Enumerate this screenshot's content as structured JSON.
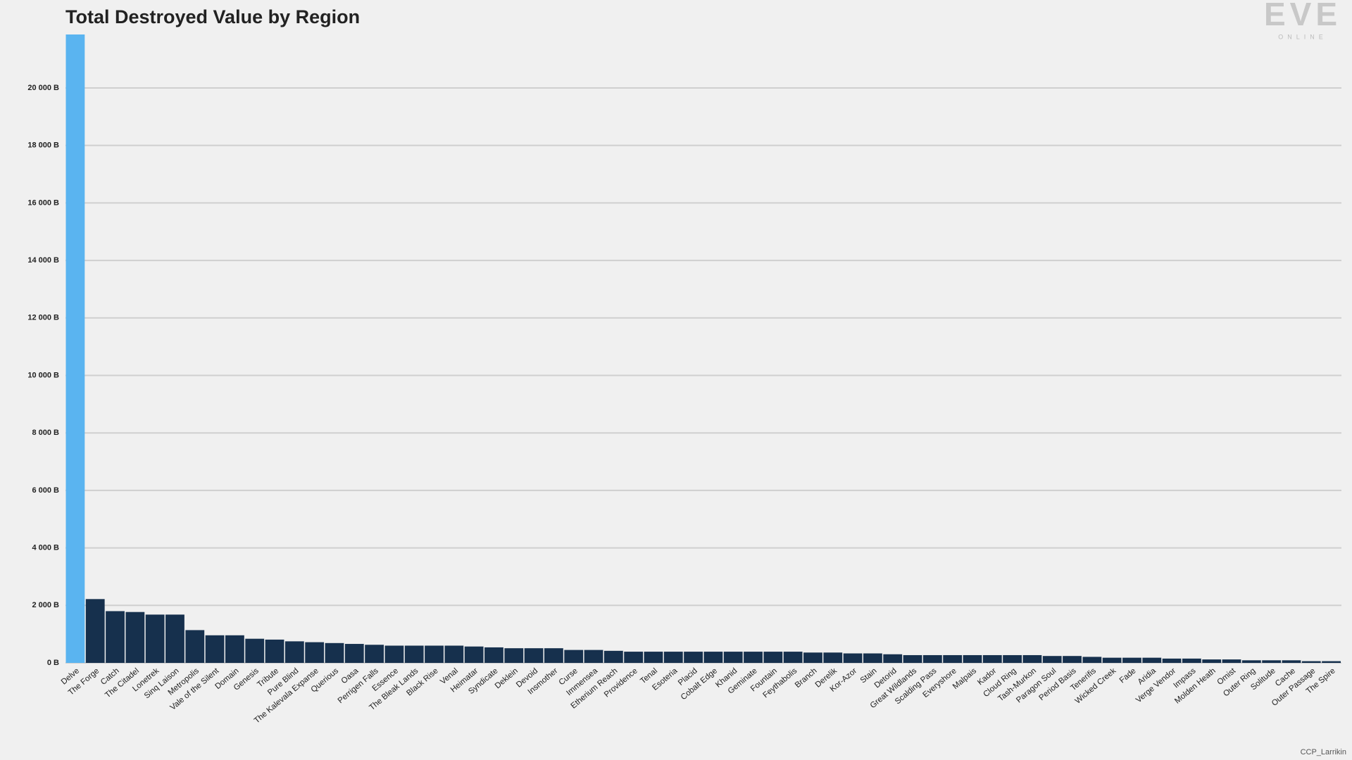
{
  "chart_data": {
    "type": "bar",
    "title": "Total Destroyed Value by Region",
    "watermark": "EVE",
    "watermark_sub": "ONLINE",
    "credit": "CCP_Larrikin",
    "categories": [
      "Delve",
      "The Forge",
      "Catch",
      "The Citadel",
      "Lonetrek",
      "Sinq Laison",
      "Metropolis",
      "Vale of the Silent",
      "Domain",
      "Genesis",
      "Tribute",
      "Pure Blind",
      "The Kalevala Expanse",
      "Querious",
      "Oasa",
      "Perrigen Falls",
      "Essence",
      "The Bleak Lands",
      "Black Rise",
      "Venal",
      "Heimatar",
      "Syndicate",
      "Deklein",
      "Devoid",
      "Insmother",
      "Curse",
      "Immensea",
      "Etherium Reach",
      "Providence",
      "Tenal",
      "Esoteria",
      "Placid",
      "Cobalt Edge",
      "Khanid",
      "Geminate",
      "Fountain",
      "Feythabolis",
      "Branch",
      "Derelik",
      "Kor-Azor",
      "Stain",
      "Detorid",
      "Great Wildlands",
      "Scalding Pass",
      "Everyshore",
      "Malpais",
      "Kador",
      "Cloud Ring",
      "Tash-Murkon",
      "Paragon Soul",
      "Period Basis",
      "Tenerifis",
      "Wicked Creek",
      "Fade",
      "Aridia",
      "Verge Vendor",
      "Impass",
      "Molden Heath",
      "Omist",
      "Outer Ring",
      "Solitude",
      "Cache",
      "Outer Passage",
      "The Spire"
    ],
    "values": [
      21860,
      2220,
      1800,
      1770,
      1680,
      1680,
      1140,
      960,
      960,
      840,
      810,
      750,
      720,
      690,
      660,
      630,
      600,
      600,
      600,
      600,
      570,
      540,
      510,
      510,
      510,
      450,
      450,
      420,
      390,
      390,
      390,
      390,
      390,
      390,
      390,
      390,
      390,
      360,
      360,
      330,
      330,
      300,
      270,
      270,
      270,
      270,
      270,
      270,
      270,
      240,
      240,
      210,
      180,
      180,
      180,
      150,
      150,
      120,
      120,
      90,
      90,
      90,
      60,
      60
    ],
    "color": "#16304d",
    "highlight_index": 0,
    "highlight_color": "#5ab4f0",
    "ylim": [
      0,
      21860
    ],
    "yticks": [
      {
        "value": 0,
        "label": "0 B"
      },
      {
        "value": 2000,
        "label": "2 000 B"
      },
      {
        "value": 4000,
        "label": "4 000 B"
      },
      {
        "value": 6000,
        "label": "6 000 B"
      },
      {
        "value": 8000,
        "label": "8 000 B"
      },
      {
        "value": 10000,
        "label": "10 000 B"
      },
      {
        "value": 12000,
        "label": "12 000 B"
      },
      {
        "value": 14000,
        "label": "14 000 B"
      },
      {
        "value": 16000,
        "label": "16 000 B"
      },
      {
        "value": 18000,
        "label": "18 000 B"
      },
      {
        "value": 20000,
        "label": "20 000 B"
      }
    ],
    "grid": true
  }
}
